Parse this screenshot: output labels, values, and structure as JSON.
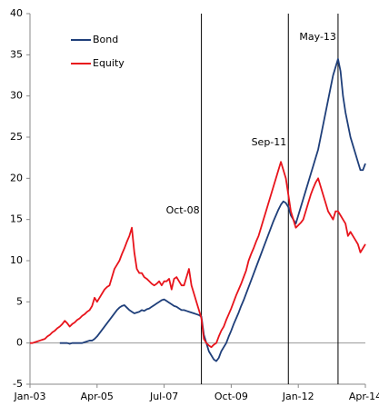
{
  "chart_data": {
    "type": "line",
    "x": [
      "Jan-03",
      "Feb-03",
      "Mar-03",
      "Apr-03",
      "May-03",
      "Jun-03",
      "Jul-03",
      "Aug-03",
      "Sep-03",
      "Oct-03",
      "Nov-03",
      "Dec-03",
      "Jan-04",
      "Feb-04",
      "Mar-04",
      "Apr-04",
      "May-04",
      "Jun-04",
      "Jul-04",
      "Aug-04",
      "Sep-04",
      "Oct-04",
      "Nov-04",
      "Dec-04",
      "Jan-05",
      "Feb-05",
      "Mar-05",
      "Apr-05",
      "May-05",
      "Jun-05",
      "Jul-05",
      "Aug-05",
      "Sep-05",
      "Oct-05",
      "Nov-05",
      "Dec-05",
      "Jan-06",
      "Feb-06",
      "Mar-06",
      "Apr-06",
      "May-06",
      "Jun-06",
      "Jul-06",
      "Aug-06",
      "Sep-06",
      "Oct-06",
      "Nov-06",
      "Dec-06",
      "Jan-07",
      "Feb-07",
      "Mar-07",
      "Apr-07",
      "May-07",
      "Jun-07",
      "Jul-07",
      "Aug-07",
      "Sep-07",
      "Oct-07",
      "Nov-07",
      "Dec-07",
      "Jan-08",
      "Feb-08",
      "Mar-08",
      "Apr-08",
      "May-08",
      "Jun-08",
      "Jul-08",
      "Aug-08",
      "Sep-08",
      "Oct-08",
      "Nov-08",
      "Dec-08",
      "Jan-09",
      "Feb-09",
      "Mar-09",
      "Apr-09",
      "May-09",
      "Jun-09",
      "Jul-09",
      "Aug-09",
      "Sep-09",
      "Oct-09",
      "Nov-09",
      "Dec-09",
      "Jan-10",
      "Feb-10",
      "Mar-10",
      "Apr-10",
      "May-10",
      "Jun-10",
      "Jul-10",
      "Aug-10",
      "Sep-10",
      "Oct-10",
      "Nov-10",
      "Dec-10",
      "Jan-11",
      "Feb-11",
      "Mar-11",
      "Apr-11",
      "May-11",
      "Jun-11",
      "Jul-11",
      "Aug-11",
      "Sep-11",
      "Oct-11",
      "Nov-11",
      "Dec-11",
      "Jan-12",
      "Feb-12",
      "Mar-12",
      "Apr-12",
      "May-12",
      "Jun-12",
      "Jul-12",
      "Aug-12",
      "Sep-12",
      "Oct-12",
      "Nov-12",
      "Dec-12",
      "Jan-13",
      "Feb-13",
      "Mar-13",
      "Apr-13",
      "May-13",
      "Jun-13",
      "Jul-13",
      "Aug-13",
      "Sep-13",
      "Oct-13",
      "Nov-13",
      "Dec-13",
      "Jan-14",
      "Feb-14",
      "Mar-14",
      "Apr-14"
    ],
    "xticks": [
      "Jan-03",
      "Apr-05",
      "Jul-07",
      "Oct-09",
      "Jan-12",
      "Apr-14"
    ],
    "vlines": [
      "Oct-08",
      "Sep-11",
      "May-13"
    ],
    "series": [
      {
        "name": "Bond",
        "color": "#1f3f7a",
        "values": [
          null,
          null,
          null,
          null,
          null,
          null,
          null,
          null,
          null,
          null,
          null,
          null,
          0,
          0,
          0,
          0,
          -0.1,
          0,
          0,
          0,
          0,
          0,
          0.1,
          0.2,
          0.3,
          0.3,
          0.5,
          0.8,
          1.2,
          1.6,
          2.0,
          2.4,
          2.8,
          3.2,
          3.6,
          4.0,
          4.3,
          4.5,
          4.6,
          4.3,
          4.0,
          3.8,
          3.6,
          3.7,
          3.8,
          4.0,
          3.9,
          4.1,
          4.2,
          4.4,
          4.6,
          4.8,
          5.0,
          5.2,
          5.3,
          5.1,
          4.9,
          4.7,
          4.5,
          4.4,
          4.2,
          4.0,
          4.0,
          3.9,
          3.8,
          3.7,
          3.6,
          3.5,
          3.4,
          3.2,
          1.0,
          0.0,
          -1.0,
          -1.5,
          -2.0,
          -2.2,
          -1.8,
          -1.0,
          -0.5,
          0.0,
          0.8,
          1.5,
          2.3,
          3.0,
          3.7,
          4.5,
          5.2,
          6.0,
          6.8,
          7.6,
          8.4,
          9.2,
          10.0,
          10.8,
          11.6,
          12.4,
          13.2,
          14.0,
          14.8,
          15.5,
          16.2,
          16.8,
          17.2,
          17.0,
          16.5,
          15.5,
          15.0,
          14.5,
          15.5,
          16.5,
          17.5,
          18.5,
          19.5,
          20.5,
          21.5,
          22.5,
          23.5,
          25.0,
          26.5,
          28.0,
          29.5,
          31.0,
          32.5,
          33.5,
          34.5,
          33.0,
          30.0,
          28.0,
          26.5,
          25.0,
          24.0,
          23.0,
          22.0,
          21.0,
          21.0,
          21.8
        ]
      },
      {
        "name": "Equity",
        "color": "#e8141c",
        "values": [
          0,
          0,
          0.1,
          0.2,
          0.3,
          0.4,
          0.5,
          0.8,
          1.0,
          1.3,
          1.5,
          1.8,
          2.0,
          2.3,
          2.7,
          2.4,
          2.0,
          2.3,
          2.5,
          2.8,
          3.0,
          3.3,
          3.5,
          3.8,
          4.0,
          4.5,
          5.5,
          5.0,
          5.5,
          6.0,
          6.5,
          6.8,
          7.0,
          8.0,
          9.0,
          9.5,
          10.0,
          10.8,
          11.5,
          12.3,
          13.0,
          14.0,
          11.0,
          9.0,
          8.5,
          8.5,
          8.0,
          7.8,
          7.5,
          7.2,
          7.0,
          7.2,
          7.5,
          7.0,
          7.5,
          7.5,
          7.8,
          6.5,
          7.8,
          8.0,
          7.5,
          7.0,
          7.0,
          8.0,
          9.0,
          7.0,
          6.0,
          5.0,
          4.0,
          3.0,
          0.5,
          0.0,
          -0.3,
          -0.5,
          -0.2,
          0.0,
          0.8,
          1.5,
          2.0,
          2.8,
          3.5,
          4.2,
          5.0,
          5.8,
          6.5,
          7.2,
          8.0,
          8.8,
          10.0,
          10.8,
          11.5,
          12.3,
          13.0,
          14.0,
          15.0,
          16.0,
          17.0,
          18.0,
          19.0,
          20.0,
          21.0,
          22.0,
          21.0,
          20.0,
          18.0,
          16.0,
          15.0,
          14.0,
          14.3,
          14.6,
          15.0,
          16.0,
          17.0,
          18.0,
          18.8,
          19.5,
          20.0,
          19.0,
          18.0,
          17.0,
          16.0,
          15.5,
          15.0,
          16.0,
          16.0,
          15.5,
          15.0,
          14.5,
          13.0,
          13.5,
          13.0,
          12.5,
          12.0,
          11.0,
          11.5,
          12.0
        ]
      }
    ],
    "ylim": [
      -5,
      40
    ],
    "yticks": [
      -5,
      0,
      5,
      10,
      15,
      20,
      25,
      30,
      35,
      40
    ],
    "legend": "upper-left",
    "grid": false
  }
}
